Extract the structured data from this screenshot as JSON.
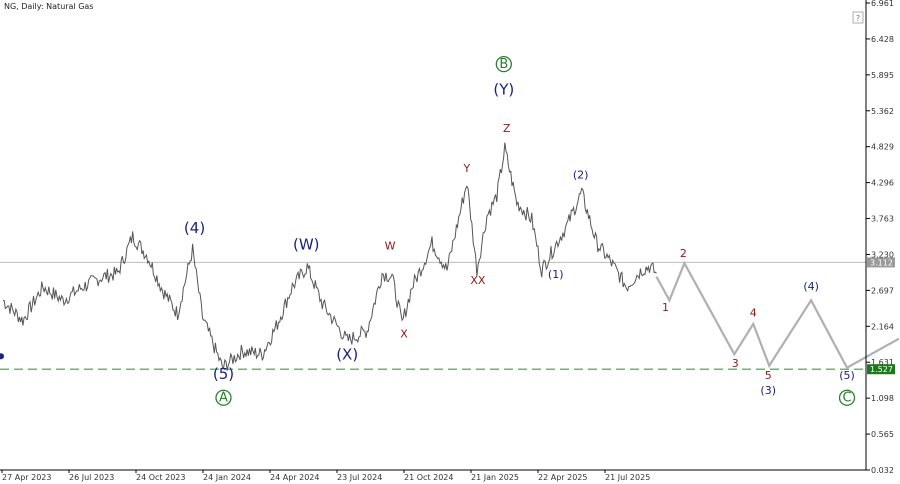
{
  "chart_data": {
    "type": "line",
    "symbol_label": "NG, Daily:  Natural Gas",
    "info_icon": "question-mark-icon",
    "y_ticks": [
      "6.961",
      "6.428",
      "5.895",
      "5.362",
      "4.829",
      "4.296",
      "3.763",
      "3.230",
      "2.697",
      "2.164",
      "1.631",
      "1.098",
      "0.565",
      "0.032"
    ],
    "ylim": [
      0.032,
      6.961
    ],
    "x_ticks": [
      "27 Apr 2023",
      "26 Jul 2023",
      "24 Oct 2023",
      "24 Jan 2024",
      "24 Apr 2024",
      "23 Jul 2024",
      "21 Oct 2024",
      "21 Jan 2025",
      "22 Apr 2025",
      "21 Jul 2025"
    ],
    "x_range_index": [
      -3,
      860
    ],
    "price_series": {
      "name": "",
      "color": "#555555",
      "points": [
        [
          0,
          2.55
        ],
        [
          20,
          2.25
        ],
        [
          40,
          2.75
        ],
        [
          60,
          2.55
        ],
        [
          80,
          2.75
        ],
        [
          100,
          2.9
        ],
        [
          115,
          2.95
        ],
        [
          130,
          3.5
        ],
        [
          145,
          3.2
        ],
        [
          160,
          2.7
        ],
        [
          175,
          2.35
        ],
        [
          190,
          3.3
        ],
        [
          200,
          2.3
        ],
        [
          220,
          1.55
        ],
        [
          240,
          1.8
        ],
        [
          260,
          1.75
        ],
        [
          275,
          2.2
        ],
        [
          290,
          2.75
        ],
        [
          305,
          3.05
        ],
        [
          320,
          2.5
        ],
        [
          345,
          1.95
        ],
        [
          365,
          2.1
        ],
        [
          380,
          2.95
        ],
        [
          390,
          2.9
        ],
        [
          400,
          2.2
        ],
        [
          410,
          2.75
        ],
        [
          420,
          3.05
        ],
        [
          430,
          3.4
        ],
        [
          445,
          3.0
        ],
        [
          465,
          4.3
        ],
        [
          475,
          3.0
        ],
        [
          485,
          3.8
        ],
        [
          495,
          4.1
        ],
        [
          503,
          4.8
        ],
        [
          515,
          4.0
        ],
        [
          530,
          3.75
        ],
        [
          540,
          3.0
        ],
        [
          555,
          3.4
        ],
        [
          565,
          3.65
        ],
        [
          580,
          4.15
        ],
        [
          595,
          3.4
        ],
        [
          610,
          3.1
        ],
        [
          625,
          2.75
        ],
        [
          640,
          3.0
        ],
        [
          648,
          3.05
        ],
        [
          655,
          2.95
        ]
      ]
    },
    "forecast_series": {
      "name": "",
      "color": "#b0b0b0",
      "points": [
        [
          655,
          2.9
        ],
        [
          668,
          2.55
        ],
        [
          683,
          3.1
        ],
        [
          733,
          1.75
        ],
        [
          752,
          2.2
        ],
        [
          768,
          1.58
        ],
        [
          810,
          2.55
        ],
        [
          846,
          1.55
        ],
        [
          898,
          1.98
        ]
      ]
    },
    "current_price": {
      "value": "3.112",
      "line_color": "#bbbbbb",
      "label_bg": "#999999"
    },
    "target_price": {
      "value": "1.527",
      "line_color": "#66bb66",
      "label_bg": "#1b7a1b"
    },
    "annotations": [
      {
        "text": "(4)",
        "x": 192,
        "y": 3.55,
        "style": "blue-l"
      },
      {
        "text": "(5)",
        "x": 221,
        "y": 1.38,
        "style": "blue-l"
      },
      {
        "text": "A",
        "x": 221,
        "y": 1.03,
        "style": "green-circle"
      },
      {
        "text": "(W)",
        "x": 304,
        "y": 3.3,
        "style": "blue-l"
      },
      {
        "text": "(X)",
        "x": 345,
        "y": 1.67,
        "style": "blue-l"
      },
      {
        "text": "W",
        "x": 388,
        "y": 3.3,
        "style": "red"
      },
      {
        "text": "X",
        "x": 402,
        "y": 2.0,
        "style": "red"
      },
      {
        "text": "Y",
        "x": 465,
        "y": 4.45,
        "style": "red"
      },
      {
        "text": "XX",
        "x": 476,
        "y": 2.79,
        "style": "red"
      },
      {
        "text": "Z",
        "x": 505,
        "y": 5.05,
        "style": "red"
      },
      {
        "text": "(Y)",
        "x": 502,
        "y": 5.6,
        "style": "blue-l"
      },
      {
        "text": "B",
        "x": 502,
        "y": 5.98,
        "style": "green-circle"
      },
      {
        "text": "(1)",
        "x": 554,
        "y": 2.88,
        "style": "blue-s"
      },
      {
        "text": "(2)",
        "x": 579,
        "y": 4.36,
        "style": "blue-s"
      },
      {
        "text": "1",
        "x": 664,
        "y": 2.39,
        "style": "red"
      },
      {
        "text": "2",
        "x": 682,
        "y": 3.19,
        "style": "red"
      },
      {
        "text": "3",
        "x": 734,
        "y": 1.56,
        "style": "red"
      },
      {
        "text": "4",
        "x": 752,
        "y": 2.31,
        "style": "red"
      },
      {
        "text": "5",
        "x": 767,
        "y": 1.38,
        "style": "red"
      },
      {
        "text": "(3)",
        "x": 767,
        "y": 1.16,
        "style": "blue-s"
      },
      {
        "text": "(4)",
        "x": 810,
        "y": 2.7,
        "style": "blue-s"
      },
      {
        "text": "(5)",
        "x": 846,
        "y": 1.38,
        "style": "blue-s"
      },
      {
        "text": "C",
        "x": 846,
        "y": 1.03,
        "style": "green-circle"
      }
    ],
    "colors": {
      "wave_blue": "#1a237e",
      "wave_red": "#8b1a1a",
      "wave_green": "#2e7d32",
      "axis": "#000000"
    },
    "grid": false
  }
}
